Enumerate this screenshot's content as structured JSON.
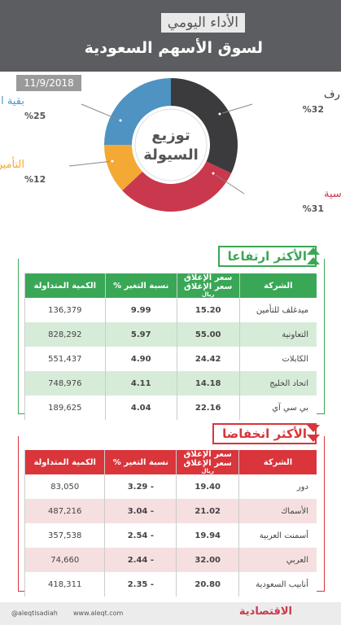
{
  "header": {
    "title": "الأداء اليومي",
    "subtitle": "لسوق الأسهم السعودية",
    "date": "11/9/2018"
  },
  "chart_data": {
    "type": "pie",
    "title": "توزيع السيولة",
    "categories": [
      "المصارف",
      "المواد الأساسية",
      "التأمين",
      "بقية القطاعات"
    ],
    "values": [
      32,
      31,
      12,
      25
    ],
    "value_labels": [
      "%32",
      "%31",
      "%12",
      "%25"
    ],
    "colors": [
      "#3b3b3d",
      "#c9384d",
      "#f4a934",
      "#4f93c3"
    ]
  },
  "gainers": {
    "title": "الأكثر ارتفاعا",
    "columns": [
      "الشركة",
      "سعر الإغلاق",
      "نسبة التغير %",
      "الكمية المتداولة"
    ],
    "unit": "ريال",
    "rows": [
      [
        "ميدغلف للتأمين",
        "15.20",
        "9.99",
        "136,379"
      ],
      [
        "التعاونية",
        "55.00",
        "5.97",
        "828,292"
      ],
      [
        "الكابلات",
        "24.42",
        "4.90",
        "551,437"
      ],
      [
        "اتحاد الخليج",
        "14.18",
        "4.11",
        "748,976"
      ],
      [
        "بي سي آي",
        "22.16",
        "4.04",
        "189,625"
      ]
    ]
  },
  "losers": {
    "title": "الأكثر انخفاضا",
    "columns": [
      "الشركة",
      "سعر الإغلاق",
      "نسبة التغير %",
      "الكمية المتداولة"
    ],
    "unit": "ريال",
    "rows": [
      [
        "دور",
        "19.40",
        "- 3.29",
        "83,050"
      ],
      [
        "الأسماك",
        "21.02",
        "- 3.04",
        "487,216"
      ],
      [
        "أسمنت العربية",
        "19.94",
        "- 2.54",
        "357,538"
      ],
      [
        "العربي",
        "32.00",
        "- 2.44",
        "74,660"
      ],
      [
        "أنابيب السعودية",
        "20.80",
        "- 2.35",
        "418,311"
      ]
    ]
  },
  "footer": {
    "twitter": "@aleqtisadiah",
    "website": "www.aleqt.com",
    "logo": "الاقتصادية"
  }
}
